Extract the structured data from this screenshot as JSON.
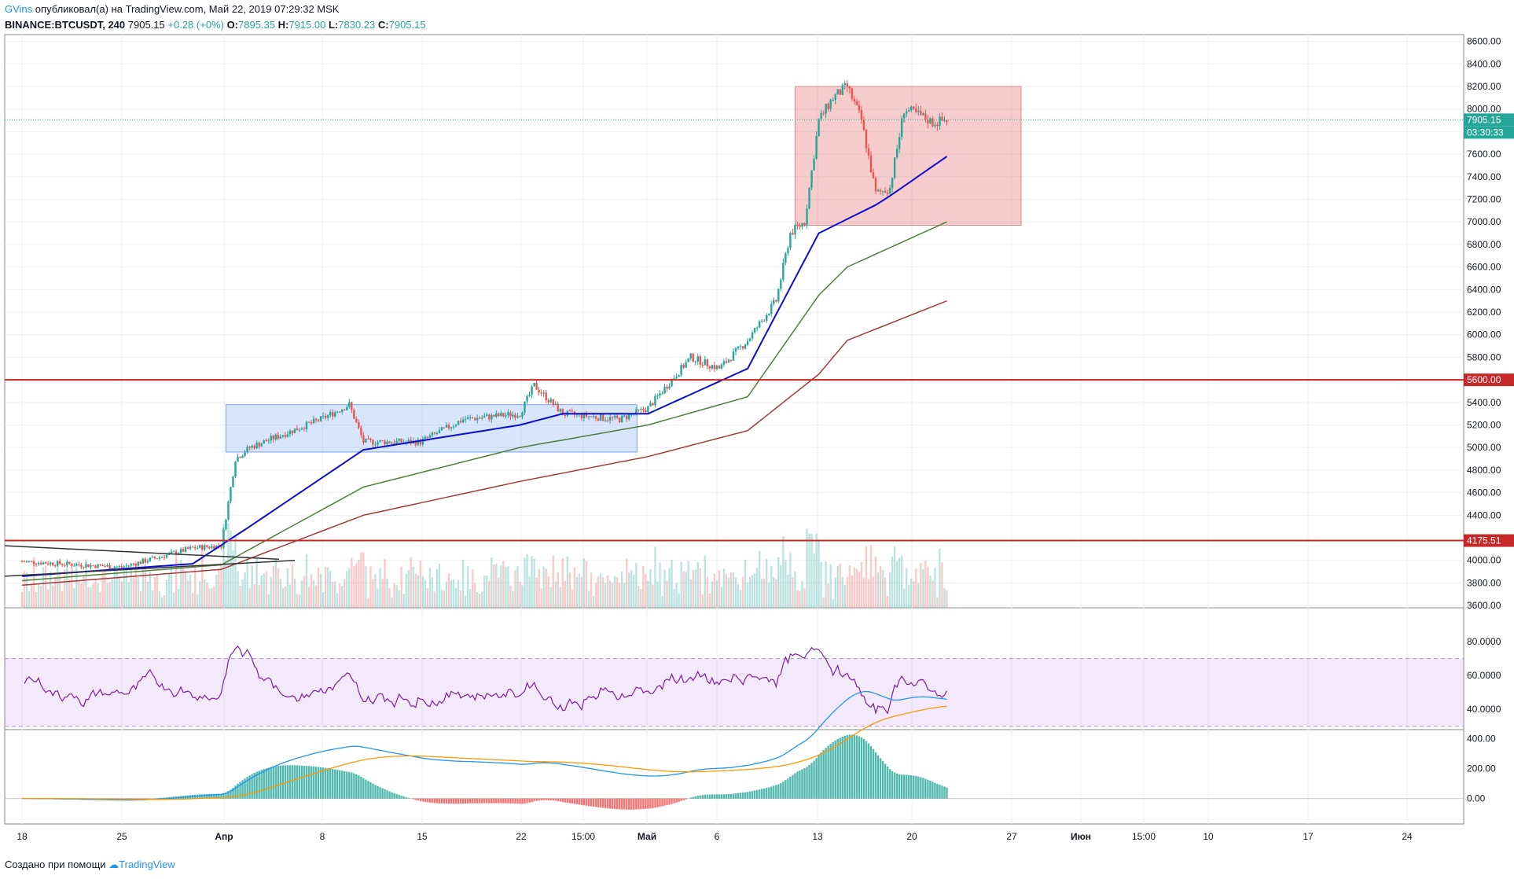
{
  "header": {
    "author": "GVins",
    "published": "опубликовал(а) на TradingView.com, Май 22, 2019 07:29:32 MSK",
    "symbol": "BINANCE:BTCUSDT, 240",
    "last": "7905.15",
    "change": "+0.28 (+0%)",
    "o_label": "O:",
    "o": "7895.35",
    "h_label": "H:",
    "h": "7915.00",
    "l_label": "L:",
    "l": "7830.23",
    "c_label": "C:",
    "c": "7905.15"
  },
  "footer": {
    "created": "Создано при помощи",
    "brand": "TradingView"
  },
  "colors": {
    "bull": "#26a69a",
    "bear": "#ef5350",
    "ema_fast": "#0d0dcf",
    "ema_mid": "#4f7d3a",
    "ema_slow": "#a33a3a",
    "support_line": "#c62828",
    "rsi": "#7b1fa2",
    "macd": "#2196f3",
    "signal": "#ff9800"
  },
  "chart_data": [
    {
      "type": "candlestick",
      "title": "BINANCE:BTCUSDT, 240",
      "y_axis_ticks": [
        "8600.00",
        "8400.00",
        "8200.00",
        "8000.00",
        "7800.00",
        "7600.00",
        "7400.00",
        "7200.00",
        "7000.00",
        "6800.00",
        "6600.00",
        "6400.00",
        "6200.00",
        "6000.00",
        "5800.00",
        "5600.00",
        "5400.00",
        "5200.00",
        "5000.00",
        "4800.00",
        "4600.00",
        "4400.00",
        "4200.00",
        "4000.00",
        "3800.00",
        "3600.00"
      ],
      "ylim": [
        3580,
        8660
      ],
      "x_axis_labels": [
        "18",
        "25",
        "Апр",
        "8",
        "15",
        "22",
        "15:00",
        "Май",
        "6",
        "13",
        "20",
        "27",
        "Июн",
        "15:00",
        "10",
        "17",
        "24"
      ],
      "price_labels": {
        "last": "7905.15",
        "countdown": "03:30:33",
        "level_high": "5600.00",
        "level_low": "4175.51"
      },
      "horizontal_levels": [
        5600.0,
        4175.51
      ],
      "series_keypoints": [
        {
          "date": "Mar 18",
          "close": 3990
        },
        {
          "date": "Mar 25",
          "close": 3940
        },
        {
          "date": "Mar 30",
          "close": 4110
        },
        {
          "date": "Apr 1",
          "close": 4130
        },
        {
          "date": "Apr 2",
          "close": 4900
        },
        {
          "date": "Apr 3",
          "close": 5000
        },
        {
          "date": "Apr 8",
          "close": 5250
        },
        {
          "date": "Apr 10",
          "close": 5380
        },
        {
          "date": "Apr 11",
          "close": 5050
        },
        {
          "date": "Apr 15",
          "close": 5050
        },
        {
          "date": "Apr 18",
          "close": 5250
        },
        {
          "date": "Apr 22",
          "close": 5300
        },
        {
          "date": "Apr 23",
          "close": 5550
        },
        {
          "date": "Apr 25",
          "close": 5300
        },
        {
          "date": "Apr 29",
          "close": 5250
        },
        {
          "date": "May 1",
          "close": 5350
        },
        {
          "date": "May 4",
          "close": 5800
        },
        {
          "date": "May 6",
          "close": 5700
        },
        {
          "date": "May 8",
          "close": 5950
        },
        {
          "date": "May 10",
          "close": 6300
        },
        {
          "date": "May 11",
          "close": 6900
        },
        {
          "date": "May 12",
          "close": 7000
        },
        {
          "date": "May 13",
          "close": 7900
        },
        {
          "date": "May 14",
          "close": 8100
        },
        {
          "date": "May 15",
          "close": 8200
        },
        {
          "date": "May 16",
          "close": 7900
        },
        {
          "date": "May 17",
          "close": 7250
        },
        {
          "date": "May 18",
          "close": 7300
        },
        {
          "date": "May 19",
          "close": 8000
        },
        {
          "date": "May 20",
          "close": 7950
        },
        {
          "date": "May 21",
          "close": 7880
        },
        {
          "date": "May 22",
          "close": 7905.15
        }
      ],
      "moving_averages": [
        {
          "color": "#0d0dcf",
          "points": [
            [
              "Mar 18",
              3860
            ],
            [
              "Mar 30",
              3970
            ],
            [
              "Apr 3",
              4300
            ],
            [
              "Apr 11",
              4980
            ],
            [
              "Apr 22",
              5200
            ],
            [
              "Apr 25",
              5300
            ],
            [
              "May 1",
              5300
            ],
            [
              "May 8",
              5700
            ],
            [
              "May 13",
              6900
            ],
            [
              "May 17",
              7150
            ],
            [
              "May 18",
              7230
            ],
            [
              "May 22",
              7580
            ]
          ]
        },
        {
          "color": "#4f7d3a",
          "points": [
            [
              "Mar 18",
              3820
            ],
            [
              "Apr 1",
              3960
            ],
            [
              "Apr 11",
              4650
            ],
            [
              "Apr 22",
              5000
            ],
            [
              "May 1",
              5200
            ],
            [
              "May 8",
              5450
            ],
            [
              "May 13",
              6350
            ],
            [
              "May 15",
              6600
            ],
            [
              "May 22",
              7000
            ]
          ]
        },
        {
          "color": "#a33a3a",
          "points": [
            [
              "Mar 18",
              3780
            ],
            [
              "Apr 1",
              3920
            ],
            [
              "Apr 11",
              4400
            ],
            [
              "Apr 22",
              4700
            ],
            [
              "May 1",
              4920
            ],
            [
              "May 8",
              5150
            ],
            [
              "May 13",
              5650
            ],
            [
              "May 15",
              5950
            ],
            [
              "May 22",
              6300
            ]
          ]
        }
      ],
      "zones": [
        {
          "from": "Apr 1",
          "to": "Apr 30",
          "top": 5380,
          "bottom": 4960,
          "color": "blue"
        },
        {
          "from": "May 11",
          "to": "May 27",
          "top": 8200,
          "bottom": 6970,
          "color": "red"
        }
      ]
    },
    {
      "type": "line",
      "title": "",
      "y_axis_ticks": [
        "80.0000",
        "60.0000",
        "40.0000"
      ],
      "band": [
        30,
        70
      ],
      "ylim": [
        28,
        100
      ]
    },
    {
      "type": "histogram",
      "title": "",
      "y_axis_ticks": [
        "400.00",
        "200.00",
        "0.00"
      ],
      "ylim": [
        -170,
        460
      ]
    }
  ]
}
